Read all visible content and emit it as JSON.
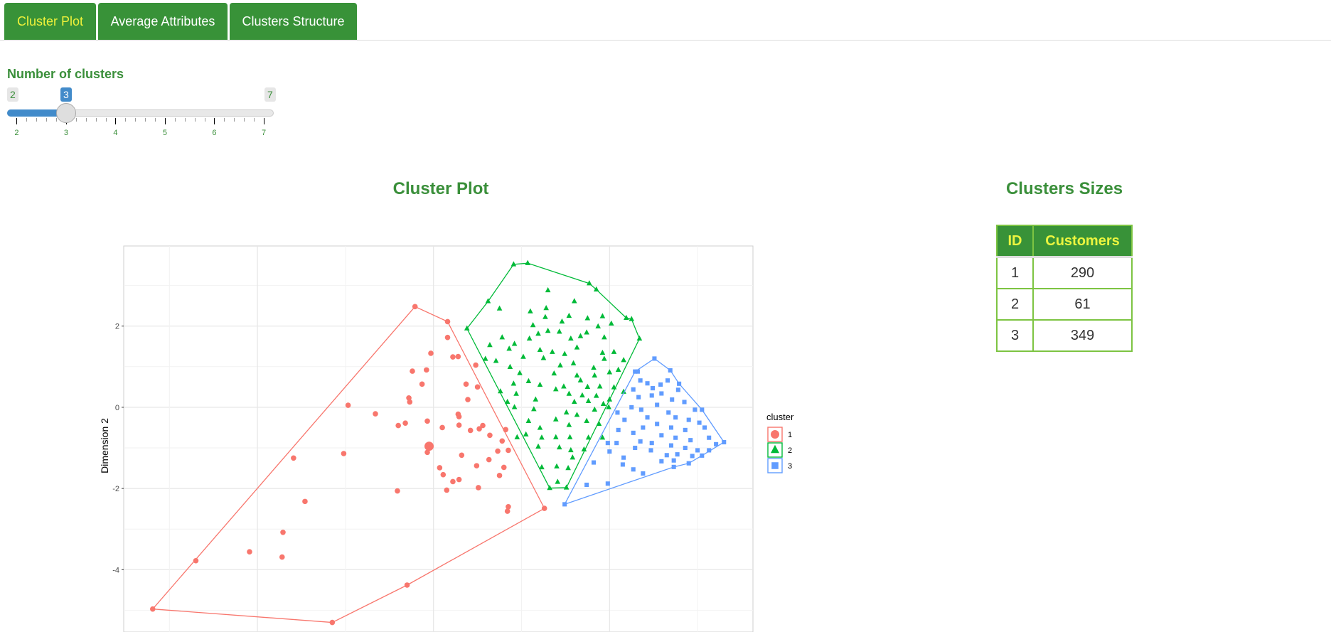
{
  "tabs": [
    {
      "label": "Cluster Plot",
      "active": true
    },
    {
      "label": "Average Attributes",
      "active": false
    },
    {
      "label": "Clusters Structure",
      "active": false
    }
  ],
  "slider": {
    "label": "Number of clusters",
    "min": "2",
    "max": "7",
    "value": "3",
    "ticks": [
      "2",
      "3",
      "4",
      "5",
      "6",
      "7"
    ]
  },
  "plot_title": "Cluster Plot",
  "sizes": {
    "title": "Clusters Sizes",
    "headers": [
      "ID",
      "Customers"
    ],
    "rows": [
      [
        "1",
        "290"
      ],
      [
        "2",
        "61"
      ],
      [
        "3",
        "349"
      ]
    ]
  },
  "chart_data": {
    "type": "scatter",
    "ylabel": "Dimension 2",
    "yticks": [
      "2",
      "0",
      "-2",
      "-4"
    ],
    "ytick_values": [
      2,
      0,
      -2,
      -4
    ],
    "grid": true,
    "legend": {
      "title": "cluster",
      "placement": "right",
      "entries": [
        "1",
        "2",
        "3"
      ]
    },
    "series": [
      {
        "name": "1",
        "color": "#F8766D",
        "shape": "circle",
        "center": [
          -0.05,
          -0.96
        ],
        "hull": [
          [
            -3.19,
            -4.97
          ],
          [
            -0.21,
            2.48
          ],
          [
            0.16,
            2.11
          ],
          [
            1.26,
            -2.49
          ],
          [
            -0.3,
            -4.38
          ],
          [
            -1.15,
            -5.3
          ]
        ],
        "points": [
          [
            -3.19,
            -4.97
          ],
          [
            -0.21,
            2.48
          ],
          [
            0.16,
            2.11
          ],
          [
            1.26,
            -2.49
          ],
          [
            -0.3,
            -4.38
          ],
          [
            -1.15,
            -5.3
          ],
          [
            -2.7,
            -3.78
          ],
          [
            0.16,
            1.72
          ],
          [
            -0.03,
            1.33
          ],
          [
            0.22,
            1.24
          ],
          [
            0.28,
            1.25
          ],
          [
            0.48,
            1.04
          ],
          [
            -0.24,
            0.89
          ],
          [
            -0.08,
            0.92
          ],
          [
            -0.13,
            0.57
          ],
          [
            0.37,
            0.57
          ],
          [
            0.5,
            0.5
          ],
          [
            -0.28,
            0.23
          ],
          [
            -0.27,
            0.13
          ],
          [
            0.39,
            0.19
          ],
          [
            -0.97,
            0.05
          ],
          [
            -0.66,
            -0.16
          ],
          [
            0.28,
            -0.17
          ],
          [
            0.29,
            -0.23
          ],
          [
            -0.4,
            -0.45
          ],
          [
            -0.32,
            -0.39
          ],
          [
            -0.07,
            -0.34
          ],
          [
            0.1,
            -0.5
          ],
          [
            0.29,
            -0.44
          ],
          [
            0.56,
            -0.45
          ],
          [
            0.52,
            -0.53
          ],
          [
            0.42,
            -0.57
          ],
          [
            0.82,
            -0.55
          ],
          [
            0.64,
            -0.69
          ],
          [
            0.78,
            -0.83
          ],
          [
            -0.07,
            -1.11
          ],
          [
            0.73,
            -1.08
          ],
          [
            0.85,
            -1.06
          ],
          [
            -1.02,
            -1.14
          ],
          [
            -1.59,
            -1.25
          ],
          [
            0.32,
            -1.18
          ],
          [
            0.63,
            -1.29
          ],
          [
            0.49,
            -1.44
          ],
          [
            0.07,
            -1.49
          ],
          [
            0.8,
            -1.48
          ],
          [
            0.11,
            -1.66
          ],
          [
            0.75,
            -1.68
          ],
          [
            0.29,
            -1.78
          ],
          [
            0.22,
            -1.83
          ],
          [
            0.51,
            -1.98
          ],
          [
            -0.41,
            -2.06
          ],
          [
            0.15,
            -2.04
          ],
          [
            -1.46,
            -2.32
          ],
          [
            0.85,
            -2.45
          ],
          [
            0.84,
            -2.56
          ],
          [
            -1.71,
            -3.08
          ],
          [
            -2.09,
            -3.56
          ],
          [
            -1.72,
            -3.69
          ]
        ]
      },
      {
        "name": "2",
        "color": "#00BA38",
        "shape": "triangle",
        "hull": [
          [
            0.38,
            1.94
          ],
          [
            0.62,
            2.61
          ],
          [
            0.91,
            3.52
          ],
          [
            1.07,
            3.55
          ],
          [
            1.77,
            3.05
          ],
          [
            1.85,
            2.9
          ],
          [
            2.19,
            2.2
          ],
          [
            2.25,
            2.17
          ],
          [
            2.34,
            1.69
          ],
          [
            1.51,
            -1.98
          ],
          [
            1.32,
            -1.99
          ]
        ],
        "points": [
          [
            0.38,
            1.94
          ],
          [
            0.62,
            2.61
          ],
          [
            0.91,
            3.52
          ],
          [
            1.07,
            3.55
          ],
          [
            1.77,
            3.05
          ],
          [
            1.85,
            2.9
          ],
          [
            2.19,
            2.2
          ],
          [
            2.25,
            2.17
          ],
          [
            2.34,
            1.69
          ],
          [
            1.51,
            -1.98
          ],
          [
            1.32,
            -1.99
          ],
          [
            1.3,
            2.88
          ],
          [
            1.6,
            2.61
          ],
          [
            0.75,
            2.43
          ],
          [
            1.1,
            2.36
          ],
          [
            1.28,
            2.44
          ],
          [
            1.27,
            2.22
          ],
          [
            1.54,
            2.25
          ],
          [
            1.46,
            2.11
          ],
          [
            1.75,
            2.19
          ],
          [
            1.92,
            2.24
          ],
          [
            2.02,
            2.06
          ],
          [
            1.87,
            1.99
          ],
          [
            1.13,
            2.02
          ],
          [
            1.3,
            1.88
          ],
          [
            1.19,
            1.81
          ],
          [
            1.43,
            1.86
          ],
          [
            1.74,
            1.84
          ],
          [
            1.67,
            1.75
          ],
          [
            1.56,
            1.69
          ],
          [
            1.94,
            1.72
          ],
          [
            0.78,
            1.72
          ],
          [
            1.09,
            1.69
          ],
          [
            0.64,
            1.53
          ],
          [
            0.92,
            1.56
          ],
          [
            0.86,
            1.44
          ],
          [
            1.21,
            1.41
          ],
          [
            1.35,
            1.36
          ],
          [
            1.49,
            1.31
          ],
          [
            1.63,
            1.47
          ],
          [
            1.92,
            1.34
          ],
          [
            2.05,
            1.36
          ],
          [
            1.02,
            1.24
          ],
          [
            1.25,
            1.21
          ],
          [
            0.59,
            1.19
          ],
          [
            0.71,
            1.14
          ],
          [
            1.59,
            1.08
          ],
          [
            1.82,
            0.97
          ],
          [
            1.94,
            1.19
          ],
          [
            2.16,
            1.16
          ],
          [
            0.87,
            0.99
          ],
          [
            0.98,
            0.84
          ],
          [
            1.37,
            0.83
          ],
          [
            1.44,
            1.03
          ],
          [
            1.63,
            0.78
          ],
          [
            1.67,
            0.66
          ],
          [
            1.83,
            0.78
          ],
          [
            2.0,
            0.86
          ],
          [
            2.1,
            0.92
          ],
          [
            0.91,
            0.58
          ],
          [
            1.08,
            0.64
          ],
          [
            1.21,
            0.55
          ],
          [
            1.48,
            0.51
          ],
          [
            1.75,
            0.5
          ],
          [
            1.89,
            0.51
          ],
          [
            2.05,
            0.49
          ],
          [
            0.76,
            0.39
          ],
          [
            0.94,
            0.33
          ],
          [
            1.39,
            0.44
          ],
          [
            1.54,
            0.33
          ],
          [
            1.69,
            0.29
          ],
          [
            1.85,
            0.28
          ],
          [
            2.0,
            0.19
          ],
          [
            2.16,
            0.38
          ],
          [
            1.16,
            0.19
          ],
          [
            1.6,
            0.13
          ],
          [
            1.76,
            0.15
          ],
          [
            1.93,
            0.08
          ],
          [
            0.84,
            0.13
          ],
          [
            0.92,
            0.0
          ],
          [
            1.14,
            -0.05
          ],
          [
            1.51,
            -0.13
          ],
          [
            1.63,
            -0.19
          ],
          [
            1.83,
            -0.06
          ],
          [
            1.99,
            0.0
          ],
          [
            1.08,
            -0.34
          ],
          [
            1.21,
            -0.51
          ],
          [
            1.39,
            -0.3
          ],
          [
            1.54,
            -0.44
          ],
          [
            1.74,
            -0.34
          ],
          [
            1.88,
            -0.41
          ],
          [
            0.95,
            -0.74
          ],
          [
            1.05,
            -0.67
          ],
          [
            1.23,
            -0.75
          ],
          [
            1.39,
            -0.74
          ],
          [
            1.55,
            -0.74
          ],
          [
            1.76,
            -0.75
          ],
          [
            1.92,
            -0.75
          ],
          [
            1.19,
            -0.97
          ],
          [
            1.43,
            -0.99
          ],
          [
            1.56,
            -1.06
          ],
          [
            1.71,
            -1.04
          ],
          [
            1.58,
            -1.24
          ],
          [
            1.23,
            -1.48
          ],
          [
            1.4,
            -1.46
          ],
          [
            1.53,
            -1.5
          ],
          [
            1.41,
            -1.84
          ]
        ]
      },
      {
        "name": "3",
        "color": "#619CFF",
        "shape": "square",
        "hull": [
          [
            1.49,
            -2.39
          ],
          [
            2.73,
            -1.47
          ],
          [
            2.9,
            -1.38
          ],
          [
            3.05,
            -1.19
          ],
          [
            3.3,
            -0.86
          ],
          [
            3.05,
            -0.06
          ],
          [
            2.79,
            0.58
          ],
          [
            2.69,
            0.91
          ],
          [
            2.51,
            1.2
          ],
          [
            2.29,
            0.88
          ]
        ],
        "points": [
          [
            1.49,
            -2.39
          ],
          [
            2.73,
            -1.47
          ],
          [
            2.9,
            -1.38
          ],
          [
            3.05,
            -1.19
          ],
          [
            3.3,
            -0.86
          ],
          [
            3.05,
            -0.06
          ],
          [
            2.79,
            0.58
          ],
          [
            2.69,
            0.91
          ],
          [
            2.51,
            1.2
          ],
          [
            2.29,
            0.88
          ],
          [
            2.32,
            0.88
          ],
          [
            2.35,
            0.66
          ],
          [
            2.43,
            0.59
          ],
          [
            2.58,
            0.56
          ],
          [
            2.66,
            0.66
          ],
          [
            2.78,
            0.43
          ],
          [
            2.49,
            0.47
          ],
          [
            2.27,
            0.44
          ],
          [
            2.33,
            0.25
          ],
          [
            2.48,
            0.29
          ],
          [
            2.59,
            0.34
          ],
          [
            2.71,
            0.19
          ],
          [
            2.85,
            0.13
          ],
          [
            2.97,
            -0.06
          ],
          [
            2.25,
            0.0
          ],
          [
            2.36,
            -0.06
          ],
          [
            2.54,
            0.06
          ],
          [
            2.67,
            -0.13
          ],
          [
            2.75,
            -0.25
          ],
          [
            2.9,
            -0.31
          ],
          [
            3.02,
            -0.38
          ],
          [
            2.09,
            -0.13
          ],
          [
            2.17,
            -0.31
          ],
          [
            2.43,
            -0.25
          ],
          [
            2.54,
            -0.41
          ],
          [
            2.7,
            -0.5
          ],
          [
            2.86,
            -0.56
          ],
          [
            3.08,
            -0.5
          ],
          [
            2.1,
            -0.56
          ],
          [
            2.27,
            -0.63
          ],
          [
            2.38,
            -0.5
          ],
          [
            2.59,
            -0.69
          ],
          [
            2.75,
            -0.75
          ],
          [
            2.92,
            -0.81
          ],
          [
            3.13,
            -0.75
          ],
          [
            3.21,
            -0.91
          ],
          [
            1.98,
            -0.88
          ],
          [
            2.08,
            -0.88
          ],
          [
            2.35,
            -0.84
          ],
          [
            2.48,
            -0.88
          ],
          [
            2.7,
            -0.94
          ],
          [
            2.86,
            -1.0
          ],
          [
            3.0,
            -1.06
          ],
          [
            3.13,
            -1.06
          ],
          [
            2.0,
            -1.09
          ],
          [
            2.16,
            -1.24
          ],
          [
            2.29,
            -1.0
          ],
          [
            2.47,
            -1.06
          ],
          [
            2.65,
            -1.18
          ],
          [
            2.77,
            -1.16
          ],
          [
            2.94,
            -1.2
          ],
          [
            1.82,
            -1.36
          ],
          [
            2.15,
            -1.41
          ],
          [
            2.27,
            -1.53
          ],
          [
            2.38,
            -1.63
          ],
          [
            2.59,
            -1.33
          ],
          [
            2.73,
            -1.31
          ],
          [
            1.74,
            -1.91
          ],
          [
            1.98,
            -1.88
          ]
        ]
      }
    ]
  }
}
